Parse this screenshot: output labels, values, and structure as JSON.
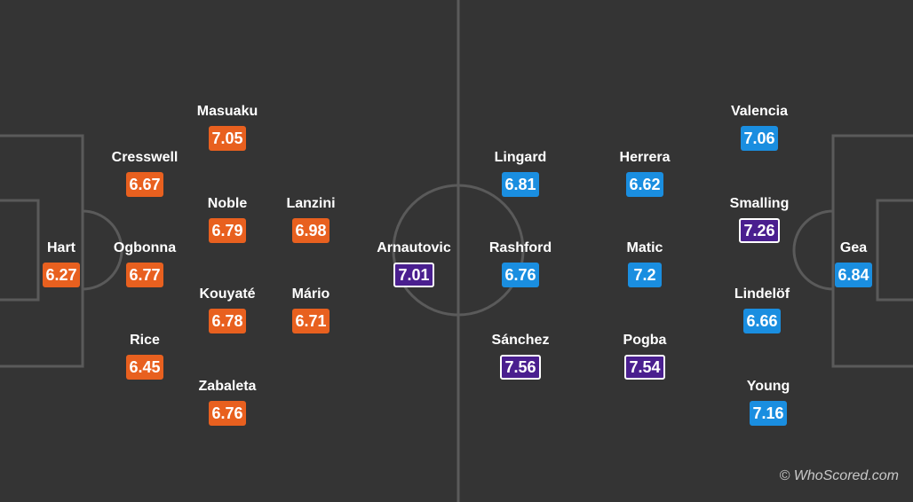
{
  "colors": {
    "pitch": "#343434",
    "lines": "#5a5a5a",
    "home": "#e8601f",
    "away": "#1a8ee0",
    "top_rated": "#4a1f8f"
  },
  "players": [
    {
      "name": "Hart",
      "rating": "6.27",
      "badge": "orange"
    },
    {
      "name": "Cresswell",
      "rating": "6.67",
      "badge": "orange"
    },
    {
      "name": "Ogbonna",
      "rating": "6.77",
      "badge": "orange"
    },
    {
      "name": "Rice",
      "rating": "6.45",
      "badge": "orange"
    },
    {
      "name": "Masuaku",
      "rating": "7.05",
      "badge": "orange"
    },
    {
      "name": "Noble",
      "rating": "6.79",
      "badge": "orange"
    },
    {
      "name": "Kouyaté",
      "rating": "6.78",
      "badge": "orange"
    },
    {
      "name": "Zabaleta",
      "rating": "6.76",
      "badge": "orange"
    },
    {
      "name": "Lanzini",
      "rating": "6.98",
      "badge": "orange"
    },
    {
      "name": "Mário",
      "rating": "6.71",
      "badge": "orange"
    },
    {
      "name": "Arnautovic",
      "rating": "7.01",
      "badge": "purple"
    },
    {
      "name": "Lingard",
      "rating": "6.81",
      "badge": "blue"
    },
    {
      "name": "Rashford",
      "rating": "6.76",
      "badge": "blue"
    },
    {
      "name": "Sánchez",
      "rating": "7.56",
      "badge": "purple"
    },
    {
      "name": "Herrera",
      "rating": "6.62",
      "badge": "blue"
    },
    {
      "name": "Matic",
      "rating": "7.2",
      "badge": "blue"
    },
    {
      "name": "Pogba",
      "rating": "7.54",
      "badge": "purple"
    },
    {
      "name": "Valencia",
      "rating": "7.06",
      "badge": "blue"
    },
    {
      "name": "Smalling",
      "rating": "7.26",
      "badge": "purple"
    },
    {
      "name": "Lindelöf",
      "rating": "6.66",
      "badge": "blue"
    },
    {
      "name": "Young",
      "rating": "7.16",
      "badge": "blue"
    },
    {
      "name": "Gea",
      "rating": "6.84",
      "badge": "blue"
    }
  ],
  "watermark": "© WhoScored.com"
}
